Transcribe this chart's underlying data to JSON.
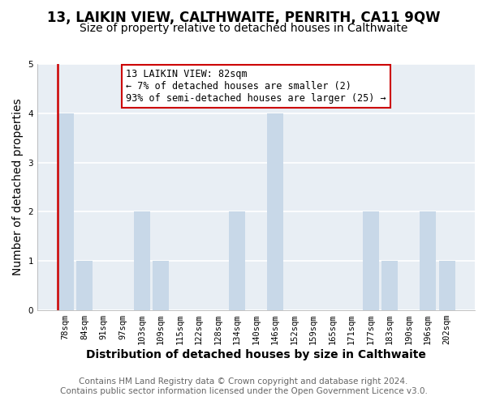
{
  "title": "13, LAIKIN VIEW, CALTHWAITE, PENRITH, CA11 9QW",
  "subtitle": "Size of property relative to detached houses in Calthwaite",
  "xlabel": "Distribution of detached houses by size in Calthwaite",
  "ylabel": "Number of detached properties",
  "categories": [
    "78sqm",
    "84sqm",
    "91sqm",
    "97sqm",
    "103sqm",
    "109sqm",
    "115sqm",
    "122sqm",
    "128sqm",
    "134sqm",
    "140sqm",
    "146sqm",
    "152sqm",
    "159sqm",
    "165sqm",
    "171sqm",
    "177sqm",
    "183sqm",
    "190sqm",
    "196sqm",
    "202sqm"
  ],
  "values": [
    4,
    1,
    0,
    0,
    2,
    1,
    0,
    0,
    0,
    2,
    0,
    4,
    0,
    0,
    0,
    0,
    2,
    1,
    0,
    2,
    1
  ],
  "bar_color_normal": "#c8d8e8",
  "bar_color_highlight": "#c8d8e8",
  "highlight_index": 0,
  "highlight_bar_edge_color": "#cc0000",
  "annotation_text": "13 LAIKIN VIEW: 82sqm\n← 7% of detached houses are smaller (2)\n93% of semi-detached houses are larger (25) →",
  "annotation_box_edge": "#cc0000",
  "annotation_box_face": "#ffffff",
  "ylim": [
    0,
    5
  ],
  "yticks": [
    0,
    1,
    2,
    3,
    4,
    5
  ],
  "footer_line1": "Contains HM Land Registry data © Crown copyright and database right 2024.",
  "footer_line2": "Contains public sector information licensed under the Open Government Licence v3.0.",
  "background_color": "#ffffff",
  "plot_background": "#e8eef4",
  "title_fontsize": 12,
  "subtitle_fontsize": 10,
  "axis_label_fontsize": 10,
  "tick_fontsize": 7.5,
  "footer_fontsize": 7.5,
  "grid_color": "#ffffff"
}
